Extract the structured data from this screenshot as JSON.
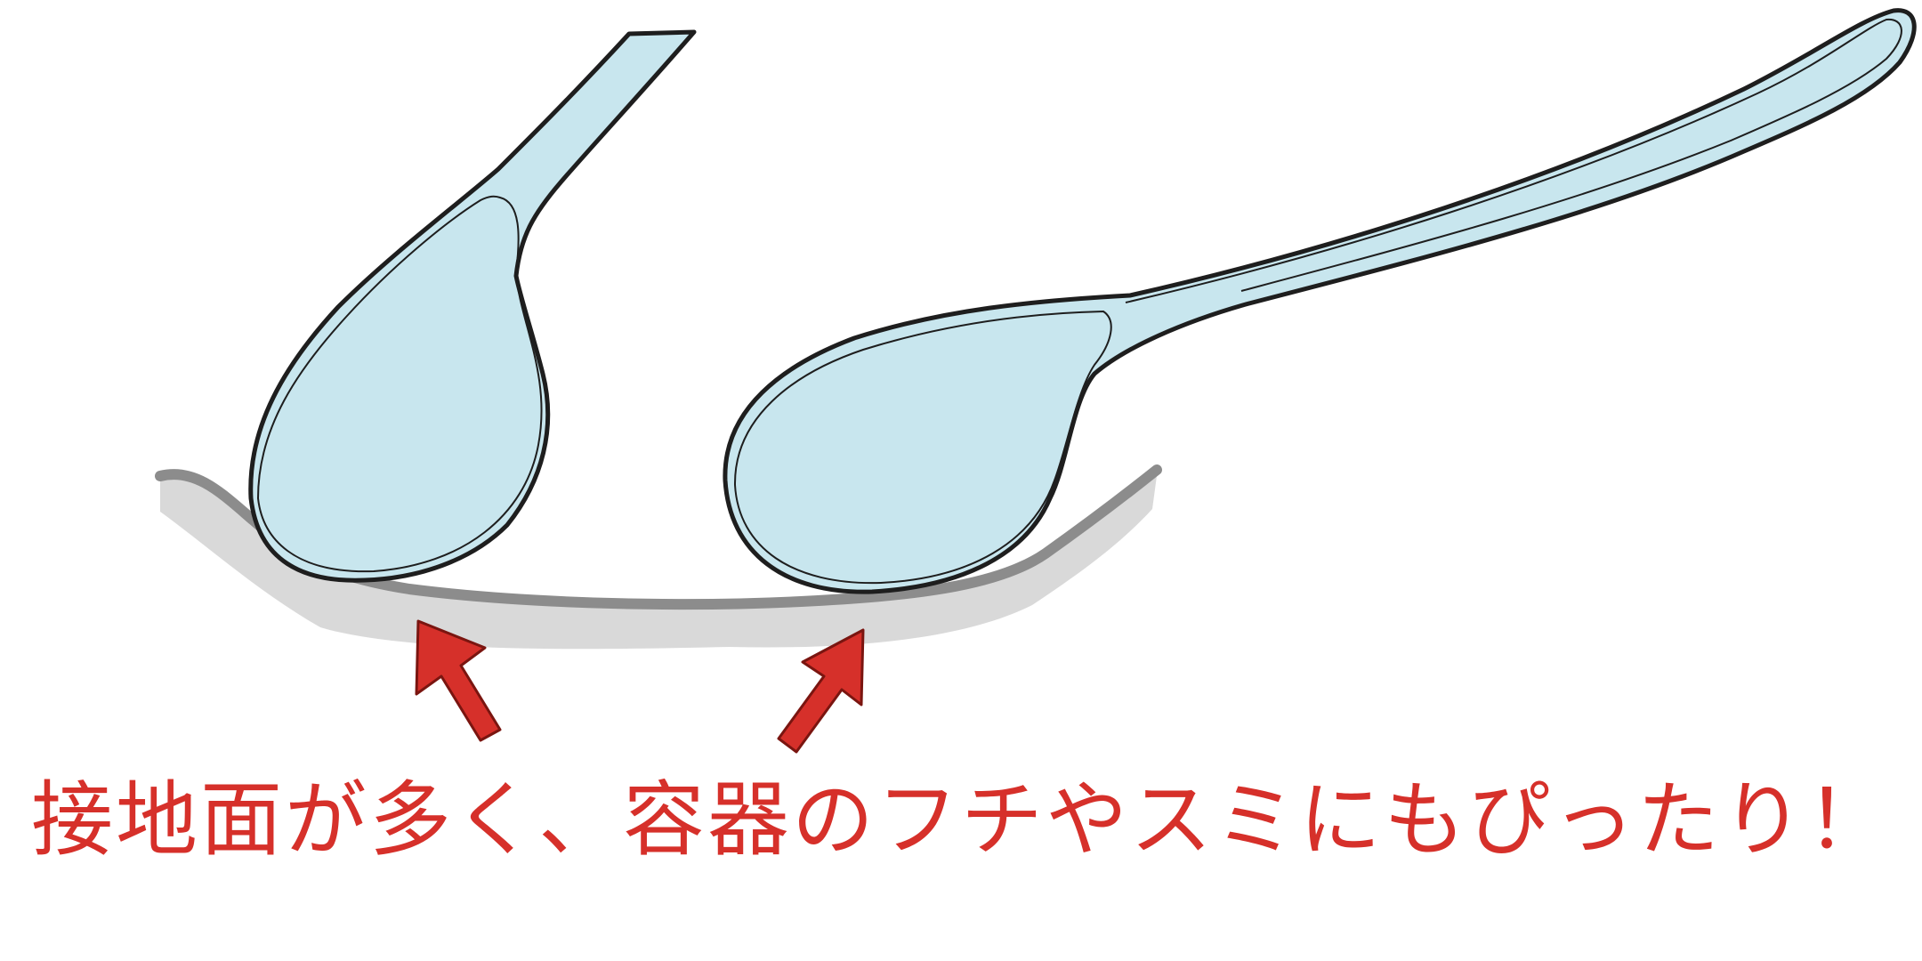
{
  "caption": "接地面が多く、容器のフチやスミにもぴったり！",
  "colors": {
    "spoon_fill": "#c8e6ee",
    "outline": "#1e1e1e",
    "dish_shadow": "#d9d9d9",
    "dish_rim": "#8c8c8c",
    "arrow": "#d6302a",
    "caption_text": "#d6302a"
  }
}
